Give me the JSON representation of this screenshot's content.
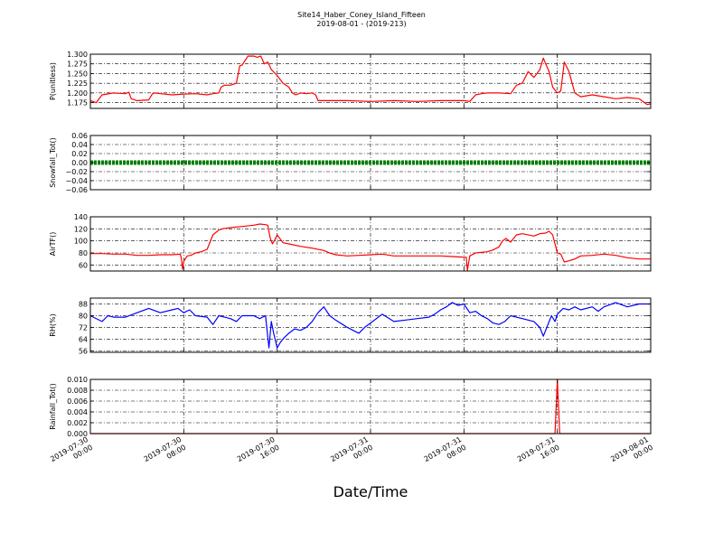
{
  "title_line1": "Site14_Haber_Coney_Island_Fifteen",
  "title_line2": "2019-08-01 - (2019-213)",
  "xlabel": "Date/Time",
  "x_ticks": [
    {
      "l1": "2019-07-30",
      "l2": "00:00"
    },
    {
      "l1": "2019-07-30",
      "l2": "08:00"
    },
    {
      "l1": "2019-07-30",
      "l2": "16:00"
    },
    {
      "l1": "2019-07-31",
      "l2": "00:00"
    },
    {
      "l1": "2019-07-31",
      "l2": "08:00"
    },
    {
      "l1": "2019-07-31",
      "l2": "16:00"
    },
    {
      "l1": "2019-08-01",
      "l2": "00:00"
    }
  ],
  "chart_data": [
    {
      "type": "line",
      "ylabel": "P(unitless)",
      "color": "#ff0000",
      "ylim": [
        1.16,
        1.3
      ],
      "yticks": [
        1.175,
        1.2,
        1.225,
        1.25,
        1.275,
        1.3
      ],
      "ytick_labels": [
        "1.175",
        "1.200",
        "1.225",
        "1.250",
        "1.275",
        "1.300"
      ],
      "x_hours": [
        0,
        0.5,
        1,
        2,
        3,
        3.3,
        3.5,
        4,
        5,
        5.3,
        5.5,
        6,
        7,
        8,
        9,
        10,
        10.5,
        11,
        11.2,
        11.5,
        12,
        12.5,
        12.8,
        13,
        13.5,
        14,
        14.3,
        14.6,
        14.9,
        15.2,
        15.5,
        16,
        16.5,
        17,
        17.3,
        17.6,
        18,
        18.5,
        19,
        19.3,
        19.5,
        20,
        22,
        24,
        26,
        28,
        30,
        32,
        32.5,
        33,
        33.5,
        34,
        35,
        36,
        36.5,
        37,
        37.5,
        38,
        38.5,
        38.8,
        39,
        39.3,
        39.6,
        40,
        40.3,
        40.6,
        41,
        41.5,
        42,
        43,
        44,
        45,
        46,
        47,
        47.7,
        48
      ],
      "y_values": [
        1.18,
        1.175,
        1.195,
        1.2,
        1.198,
        1.202,
        1.185,
        1.18,
        1.182,
        1.197,
        1.2,
        1.198,
        1.195,
        1.197,
        1.198,
        1.195,
        1.198,
        1.2,
        1.215,
        1.22,
        1.22,
        1.225,
        1.27,
        1.272,
        1.295,
        1.295,
        1.292,
        1.295,
        1.275,
        1.28,
        1.26,
        1.245,
        1.225,
        1.215,
        1.2,
        1.195,
        1.2,
        1.198,
        1.2,
        1.195,
        1.18,
        1.18,
        1.18,
        1.178,
        1.18,
        1.178,
        1.18,
        1.18,
        1.178,
        1.195,
        1.198,
        1.2,
        1.2,
        1.198,
        1.22,
        1.225,
        1.255,
        1.24,
        1.26,
        1.29,
        1.275,
        1.255,
        1.215,
        1.2,
        1.205,
        1.28,
        1.255,
        1.2,
        1.19,
        1.195,
        1.19,
        1.185,
        1.188,
        1.185,
        1.17,
        1.172
      ]
    },
    {
      "type": "line",
      "ylabel": "Snowfall_Tot()",
      "color": "#008000",
      "ylim": [
        -0.06,
        0.06
      ],
      "yticks": [
        -0.06,
        -0.04,
        -0.02,
        0.0,
        0.02,
        0.04,
        0.06
      ],
      "ytick_labels": [
        "−0.06",
        "−0.04",
        "−0.02",
        "0.00",
        "0.02",
        "0.04",
        "0.06"
      ],
      "x_hours": [
        0,
        48
      ],
      "y_values": [
        0,
        0
      ],
      "markers": true
    },
    {
      "type": "line",
      "ylabel": "AirTF()",
      "color": "#ff0000",
      "ylim": [
        50,
        140
      ],
      "yticks": [
        60,
        80,
        100,
        120,
        140
      ],
      "ytick_labels": [
        "60",
        "80",
        "100",
        "120",
        "140"
      ],
      "x_hours": [
        0,
        1,
        2,
        3,
        4,
        5,
        6,
        7,
        7.7,
        7.8,
        7.9,
        8.0,
        8.3,
        8.6,
        9,
        9.5,
        10,
        10.5,
        11,
        11.3,
        11.6,
        12,
        13,
        14,
        14.5,
        15,
        15.2,
        15.4,
        15.6,
        15.8,
        16,
        16.5,
        17,
        18,
        19,
        20,
        20.5,
        21,
        22,
        23,
        24,
        25,
        26,
        28,
        30,
        31,
        32,
        32.2,
        32.3,
        32.5,
        33,
        34,
        34.5,
        35,
        35.3,
        35.6,
        36,
        36.5,
        37,
        38,
        38.5,
        39,
        39.3,
        39.6,
        40,
        40.3,
        40.6,
        41,
        41.5,
        42,
        43,
        44,
        45,
        46,
        47,
        48
      ],
      "y_values": [
        79,
        79,
        78,
        78,
        76,
        76,
        77,
        77,
        78,
        70,
        53,
        66,
        75,
        76,
        80,
        82,
        86,
        110,
        118,
        120,
        121,
        122,
        124,
        126,
        128,
        127,
        126,
        105,
        95,
        102,
        110,
        97,
        95,
        91,
        88,
        84,
        80,
        77,
        75,
        76,
        77,
        78,
        75,
        75,
        75,
        74,
        73,
        73,
        51,
        75,
        80,
        82,
        85,
        90,
        100,
        104,
        98,
        110,
        112,
        108,
        112,
        113,
        116,
        110,
        80,
        78,
        65,
        67,
        70,
        75,
        76,
        78,
        76,
        72,
        70,
        70
      ]
    },
    {
      "type": "line",
      "ylabel": "RH(%)",
      "color": "#0000ff",
      "ylim": [
        55,
        92
      ],
      "yticks": [
        56,
        64,
        72,
        80,
        88
      ],
      "ytick_labels": [
        "56",
        "64",
        "72",
        "80",
        "88"
      ],
      "x_hours": [
        0,
        1,
        1.5,
        2,
        3,
        4,
        5,
        6,
        7,
        7.5,
        8,
        8.5,
        9,
        10,
        10.5,
        11,
        12,
        12.5,
        13,
        14,
        14.5,
        15,
        15.3,
        15.5,
        15.7,
        16,
        16.3,
        16.6,
        17,
        17.5,
        18,
        18.5,
        19,
        19.5,
        20,
        20.5,
        21,
        22,
        22.5,
        23,
        23.5,
        24,
        25,
        26,
        27,
        28,
        29,
        29.5,
        30,
        30.5,
        31,
        31.5,
        32,
        32.5,
        33,
        33.5,
        34,
        34.5,
        35,
        35.5,
        36,
        37,
        38,
        38.5,
        38.8,
        39.2,
        39.5,
        39.8,
        40,
        40.5,
        41,
        41.5,
        42,
        43,
        43.5,
        44,
        45,
        46,
        47,
        48
      ],
      "y_values": [
        80,
        76,
        80,
        79,
        79,
        82,
        85,
        82,
        84,
        85,
        82,
        84,
        80,
        79,
        74,
        80,
        78,
        76,
        80,
        80,
        78,
        80,
        58,
        76,
        68,
        58,
        62,
        65,
        68,
        71,
        70,
        72,
        76,
        82,
        86,
        80,
        77,
        72,
        70,
        68,
        72,
        75,
        81,
        76,
        77,
        78,
        79,
        81,
        84,
        86,
        89,
        87,
        88,
        82,
        83,
        80,
        78,
        75,
        74,
        76,
        80,
        78,
        76,
        72,
        66,
        74,
        80,
        76,
        81,
        85,
        84,
        86,
        84,
        86,
        83,
        86,
        89,
        86,
        88,
        88
      ]
    },
    {
      "type": "line",
      "ylabel": "Rainfall_Tot()",
      "color": "#ff0000",
      "ylim": [
        0,
        0.01
      ],
      "yticks": [
        0.0,
        0.002,
        0.004,
        0.006,
        0.008,
        0.01
      ],
      "ytick_labels": [
        "0.000",
        "0.002",
        "0.004",
        "0.006",
        "0.008",
        "0.010"
      ],
      "x_hours": [
        0,
        39.7,
        39.8,
        40.0,
        40.2,
        48
      ],
      "y_values": [
        0,
        0,
        0,
        0.01,
        0,
        0
      ]
    }
  ]
}
